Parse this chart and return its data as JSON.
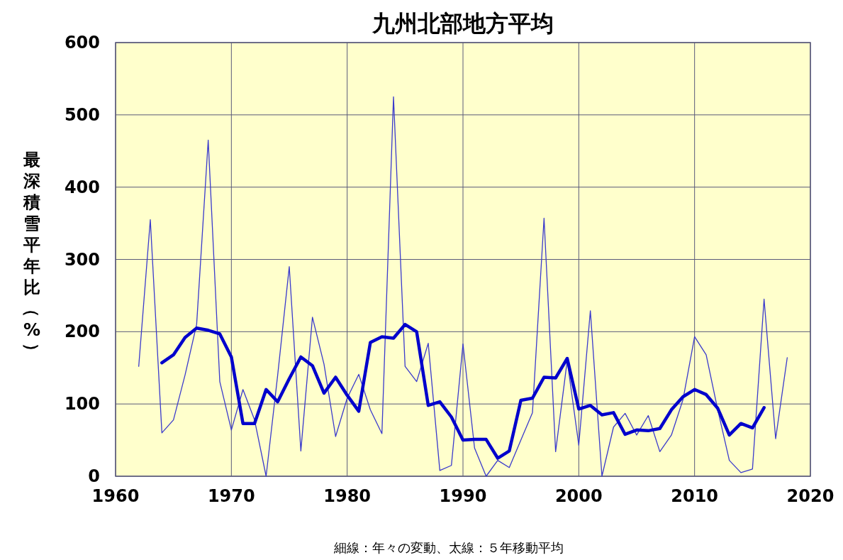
{
  "chart_data": {
    "type": "line",
    "title": "九州北部地方平均",
    "ylabel": "最深積雪平年比（%）",
    "annotations": [
      "細線：年々の変動、太線：５年移動平均"
    ],
    "xlim": [
      1960,
      2020
    ],
    "xticks": [
      1960,
      1970,
      1980,
      1990,
      2000,
      2010,
      2020
    ],
    "ylim": [
      0,
      600
    ],
    "yticks": [
      0,
      100,
      200,
      300,
      400,
      500,
      600
    ],
    "grid": true,
    "series": [
      {
        "color": "#3a3acc",
        "x": [
          1962,
          1963,
          1964,
          1965,
          1966,
          1967,
          1968,
          1969,
          1970,
          1971,
          1972,
          1973,
          1974,
          1975,
          1976,
          1977,
          1978,
          1979,
          1980,
          1981,
          1982,
          1983,
          1984,
          1985,
          1986,
          1987,
          1988,
          1989,
          1990,
          1991,
          1992,
          1993,
          1994,
          1995,
          1996,
          1997,
          1998,
          1999,
          2000,
          2001,
          2002,
          2003,
          2004,
          2005,
          2006,
          2007,
          2008,
          2009,
          2010,
          2011,
          2012,
          2013,
          2014,
          2015,
          2016,
          2017,
          2018
        ],
        "values": [
          152,
          355,
          60,
          78,
          140,
          210,
          465,
          131,
          64,
          120,
          78,
          0,
          140,
          290,
          35,
          220,
          155,
          55,
          108,
          141,
          92,
          59,
          525,
          152,
          131,
          184,
          8,
          15,
          183,
          39,
          0,
          22,
          12,
          50,
          88,
          357,
          34,
          160,
          43,
          229,
          0,
          68,
          87,
          57,
          84,
          34,
          57,
          106,
          193,
          168,
          92,
          22,
          5,
          10,
          245,
          52,
          164
        ]
      },
      {
        "color": "#0000cc",
        "x": [
          1964,
          1965,
          1966,
          1967,
          1968,
          1969,
          1970,
          1971,
          1972,
          1973,
          1974,
          1975,
          1976,
          1977,
          1978,
          1979,
          1980,
          1981,
          1982,
          1983,
          1984,
          1985,
          1986,
          1987,
          1988,
          1989,
          1990,
          1991,
          1992,
          1993,
          1994,
          1995,
          1996,
          1997,
          1998,
          1999,
          2000,
          2001,
          2002,
          2003,
          2004,
          2005,
          2006,
          2007,
          2008,
          2009,
          2010,
          2011,
          2012,
          2013,
          2014,
          2015,
          2016
        ],
        "values": [
          157,
          168,
          192,
          205,
          202,
          197,
          165,
          73,
          73,
          120,
          103,
          135,
          165,
          153,
          115,
          137,
          112,
          90,
          185,
          193,
          191,
          210,
          200,
          98,
          103,
          82,
          50,
          51,
          51,
          25,
          35,
          105,
          108,
          137,
          136,
          163,
          93,
          98,
          85,
          88,
          58,
          64,
          63,
          66,
          92,
          110,
          120,
          113,
          94,
          57,
          73,
          67,
          95
        ]
      }
    ]
  }
}
